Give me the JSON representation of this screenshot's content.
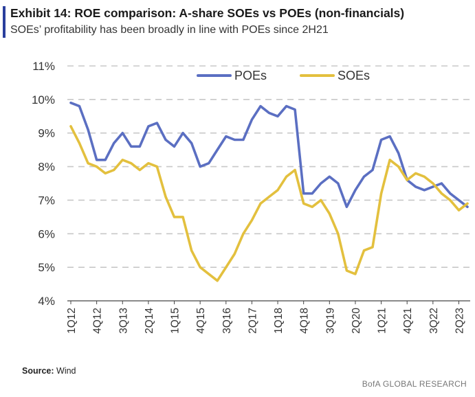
{
  "header": {
    "title": "Exhibit 14: ROE comparison: A-share SOEs vs POEs (non-financials)",
    "subtitle": "SOEs’ profitability has been broadly in line with POEs since 2H21"
  },
  "footer": {
    "source_label": "Source:",
    "source_value": "Wind",
    "credit": "BofA GLOBAL RESEARCH"
  },
  "colors": {
    "poe": "#5b6fc2",
    "soe": "#e3c03e",
    "grid": "#c8c8c8",
    "accent": "#2a3f9d"
  },
  "chart_data": {
    "type": "line",
    "title": "ROE comparison: A-share SOEs vs POEs (non-financials)",
    "xlabel": "",
    "ylabel": "",
    "ylim": [
      4,
      11
    ],
    "yticks": [
      4,
      5,
      6,
      7,
      8,
      9,
      10,
      11
    ],
    "ytick_labels": [
      "4%",
      "5%",
      "6%",
      "7%",
      "8%",
      "9%",
      "10%",
      "11%"
    ],
    "grid": true,
    "legend_position": "top",
    "x": [
      "1Q12",
      "2Q12",
      "3Q12",
      "4Q12",
      "1Q13",
      "2Q13",
      "3Q13",
      "4Q13",
      "1Q14",
      "2Q14",
      "3Q14",
      "4Q14",
      "1Q15",
      "2Q15",
      "3Q15",
      "4Q15",
      "1Q16",
      "2Q16",
      "3Q16",
      "4Q16",
      "1Q17",
      "2Q17",
      "3Q17",
      "4Q17",
      "1Q18",
      "2Q18",
      "3Q18",
      "4Q18",
      "1Q19",
      "2Q19",
      "3Q19",
      "4Q19",
      "1Q20",
      "2Q20",
      "3Q20",
      "4Q20",
      "1Q21",
      "2Q21",
      "3Q21",
      "4Q21",
      "1Q22",
      "2Q22",
      "3Q22",
      "4Q22",
      "1Q23",
      "2Q23",
      "3Q23"
    ],
    "xtick_labels": [
      "1Q12",
      "4Q12",
      "3Q13",
      "2Q14",
      "1Q15",
      "4Q15",
      "3Q16",
      "2Q17",
      "1Q18",
      "4Q18",
      "3Q19",
      "2Q20",
      "1Q21",
      "4Q21",
      "3Q22",
      "2Q23"
    ],
    "series": [
      {
        "name": "POEs",
        "color": "#5b6fc2",
        "values": [
          9.9,
          9.8,
          9.1,
          8.2,
          8.2,
          8.7,
          9.0,
          8.6,
          8.6,
          9.2,
          9.3,
          8.8,
          8.6,
          9.0,
          8.7,
          8.0,
          8.1,
          8.5,
          8.9,
          8.8,
          8.8,
          9.4,
          9.8,
          9.6,
          9.5,
          9.8,
          9.7,
          7.2,
          7.2,
          7.5,
          7.7,
          7.5,
          6.8,
          7.3,
          7.7,
          7.9,
          8.8,
          8.9,
          8.4,
          7.6,
          7.4,
          7.3,
          7.4,
          7.5,
          7.2,
          7.0,
          6.8
        ]
      },
      {
        "name": "SOEs",
        "color": "#e3c03e",
        "values": [
          9.2,
          8.7,
          8.1,
          8.0,
          7.8,
          7.9,
          8.2,
          8.1,
          7.9,
          8.1,
          8.0,
          7.1,
          6.5,
          6.5,
          5.5,
          5.0,
          4.8,
          4.6,
          5.0,
          5.4,
          6.0,
          6.4,
          6.9,
          7.1,
          7.3,
          7.7,
          7.9,
          6.9,
          6.8,
          7.0,
          6.6,
          6.0,
          4.9,
          4.8,
          5.5,
          5.6,
          7.2,
          8.2,
          8.0,
          7.6,
          7.8,
          7.7,
          7.5,
          7.2,
          7.0,
          6.7,
          6.9
        ]
      }
    ]
  }
}
